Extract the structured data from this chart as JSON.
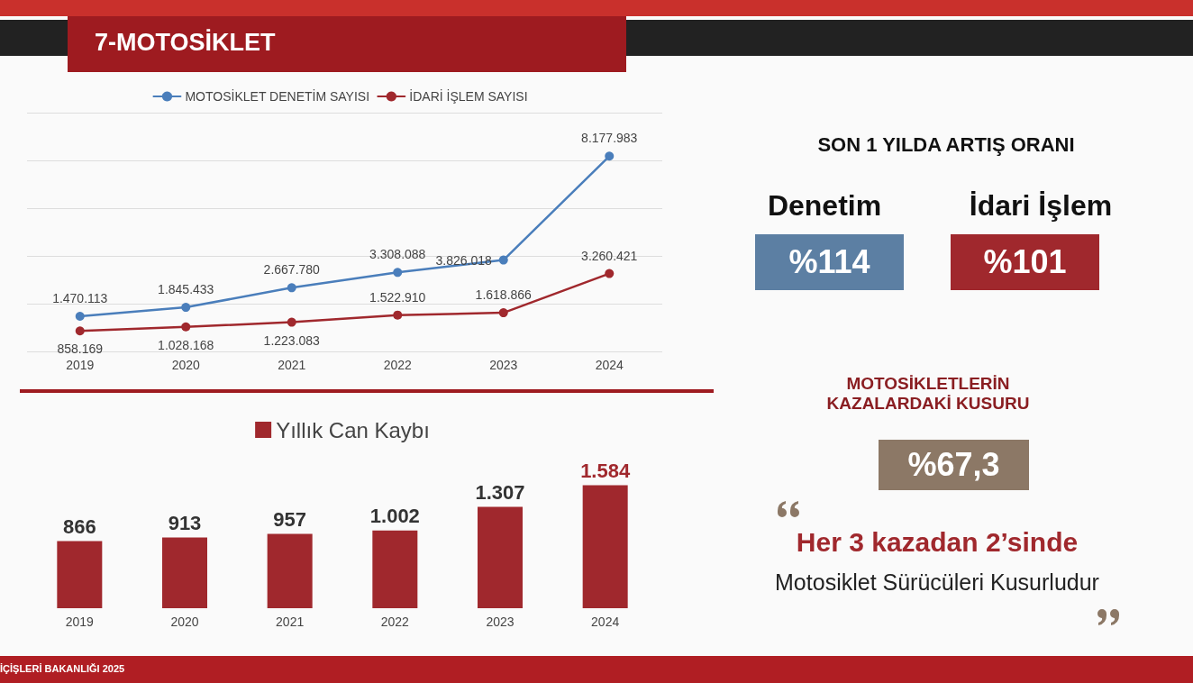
{
  "chart_data": [
    {
      "type": "line",
      "title": "7-MOTOSİKLET",
      "categories": [
        "2019",
        "2020",
        "2021",
        "2022",
        "2023",
        "2024"
      ],
      "series": [
        {
          "name": "MOTOSİKLET DENETİM SAYISI",
          "color": "#4a7ebb",
          "values": [
            1470113,
            1845433,
            2667780,
            3308088,
            3826018,
            8177983
          ],
          "value_labels": [
            "1.470.113",
            "1.845.433",
            "2.667.780",
            "3.308.088",
            "3.826.018",
            "8.177.983"
          ]
        },
        {
          "name": "İDARİ İŞLEM SAYISI",
          "color": "#a0282d",
          "values": [
            858169,
            1028168,
            1223083,
            1522910,
            1618866,
            3260421
          ],
          "value_labels": [
            "858.169",
            "1.028.168",
            "1.223.083",
            "1.522.910",
            "1.618.866",
            "3.260.421"
          ]
        }
      ],
      "marker": "circle",
      "grid": "y",
      "legend": "top",
      "tick_labels": "x"
    },
    {
      "type": "bar",
      "categories": [
        "2019",
        "2020",
        "2021",
        "2022",
        "2023",
        "2024"
      ],
      "series": [
        {
          "name": "Yıllık Can Kaybı",
          "color": "#a0282d",
          "values": [
            866,
            913,
            957,
            1002,
            1307,
            1584
          ],
          "value_labels": [
            "866",
            "913",
            "957",
            "1.002",
            "1.307",
            "1.584"
          ]
        }
      ],
      "legend": "top",
      "tick_labels": "x"
    },
    {
      "type": "other",
      "title": "SON 1 YILDA ARTIŞ ORANI",
      "annotations": [
        "Denetim",
        "İdari İşlem",
        "%114",
        "%101",
        "MOTOSİKLETLERİN KAZALARDAKİ KUSURU",
        "%67,3",
        "Her 3 kazadan 2’sinde",
        "Motosiklet Sürücüleri Kusurludur",
        "İÇİŞLERİ BAKANLIĞI 2025"
      ]
    }
  ]
}
